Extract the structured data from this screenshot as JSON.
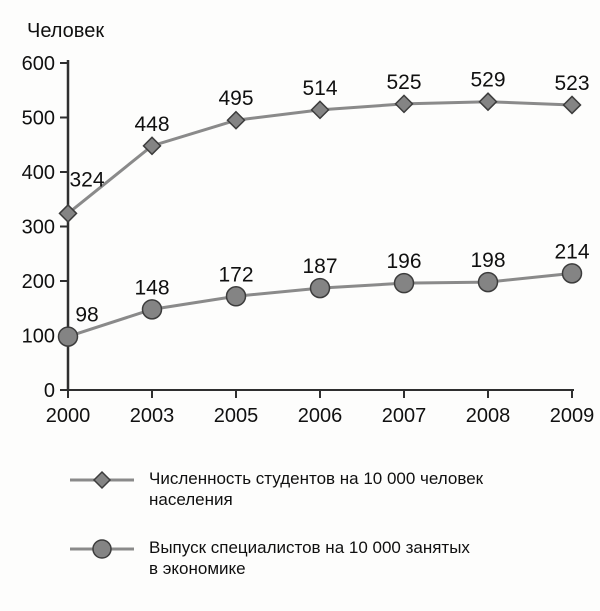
{
  "chart_data": {
    "type": "line",
    "title": "",
    "ylabel": "Человек",
    "xlabel": "",
    "categories": [
      "2000",
      "2003",
      "2005",
      "2006",
      "2007",
      "2008",
      "2009"
    ],
    "y_ticks": [
      0,
      100,
      200,
      300,
      400,
      500,
      600
    ],
    "ylim": [
      0,
      600
    ],
    "grid": false,
    "legend_position": "bottom",
    "series": [
      {
        "name": "Численность студентов на 10 000 человек населения",
        "marker": "diamond",
        "values": [
          324,
          448,
          495,
          514,
          525,
          529,
          523
        ]
      },
      {
        "name": "Выпуск специалистов на 10 000 занятых в экономике",
        "marker": "circle",
        "values": [
          98,
          148,
          172,
          187,
          196,
          198,
          214
        ]
      }
    ],
    "colors": {
      "line": "#8a8a8a",
      "marker_fill": "#848484",
      "marker_stroke": "#3c3c3c",
      "axis": "#2f2f2f",
      "text": "#101010"
    }
  },
  "legend": {
    "items": [
      {
        "icon": "diamond-marker-icon",
        "lines": [
          "Численность студентов на 10 000 человек",
          "населения"
        ]
      },
      {
        "icon": "circle-marker-icon",
        "lines": [
          "Выпуск специалистов на 10 000 занятых",
          "в экономике"
        ]
      }
    ]
  }
}
